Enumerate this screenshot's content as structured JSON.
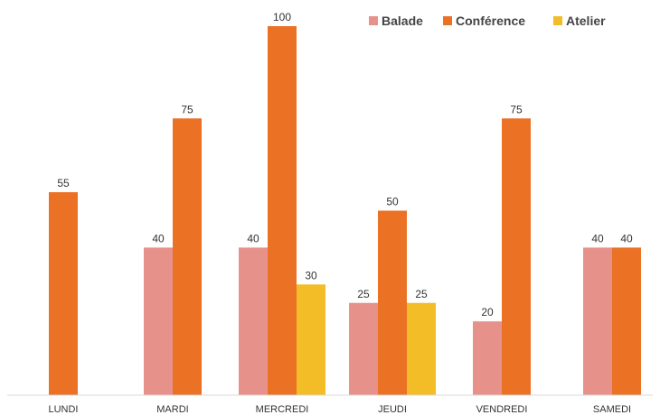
{
  "chart_data": {
    "type": "bar",
    "title": "",
    "xlabel": "",
    "ylabel": "",
    "ylim": [
      0,
      100
    ],
    "grid": false,
    "legend_position": "top-right",
    "categories": [
      "LUNDI",
      "MARDI",
      "MERCREDI",
      "JEUDI",
      "VENDREDI",
      "SAMEDI"
    ],
    "series": [
      {
        "name": "Balade",
        "color": "#E6928A",
        "values": [
          null,
          40,
          40,
          25,
          20,
          40
        ]
      },
      {
        "name": "Conférence",
        "color": "#EB7125",
        "values": [
          55,
          75,
          100,
          50,
          75,
          40
        ]
      },
      {
        "name": "Atelier",
        "color": "#F2BD27",
        "values": [
          null,
          null,
          30,
          25,
          null,
          null
        ]
      }
    ]
  }
}
